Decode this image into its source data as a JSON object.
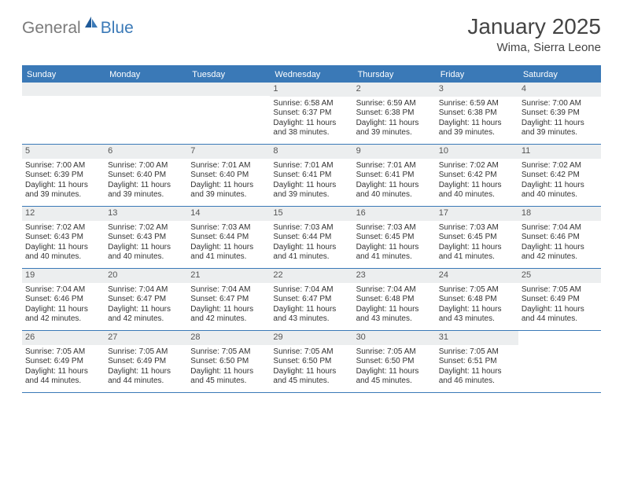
{
  "logo": {
    "word1": "General",
    "word2": "Blue"
  },
  "title": "January 2025",
  "location": "Wima, Sierra Leone",
  "colors": {
    "brand_blue": "#3a79b7",
    "header_gray": "#eceeef",
    "text": "#333333",
    "logo_gray": "#7a7a7a",
    "background": "#ffffff"
  },
  "weekdays": [
    "Sunday",
    "Monday",
    "Tuesday",
    "Wednesday",
    "Thursday",
    "Friday",
    "Saturday"
  ],
  "weeks": [
    [
      null,
      null,
      null,
      {
        "n": "1",
        "sr": "Sunrise: 6:58 AM",
        "ss": "Sunset: 6:37 PM",
        "d1": "Daylight: 11 hours",
        "d2": "and 38 minutes."
      },
      {
        "n": "2",
        "sr": "Sunrise: 6:59 AM",
        "ss": "Sunset: 6:38 PM",
        "d1": "Daylight: 11 hours",
        "d2": "and 39 minutes."
      },
      {
        "n": "3",
        "sr": "Sunrise: 6:59 AM",
        "ss": "Sunset: 6:38 PM",
        "d1": "Daylight: 11 hours",
        "d2": "and 39 minutes."
      },
      {
        "n": "4",
        "sr": "Sunrise: 7:00 AM",
        "ss": "Sunset: 6:39 PM",
        "d1": "Daylight: 11 hours",
        "d2": "and 39 minutes."
      }
    ],
    [
      {
        "n": "5",
        "sr": "Sunrise: 7:00 AM",
        "ss": "Sunset: 6:39 PM",
        "d1": "Daylight: 11 hours",
        "d2": "and 39 minutes."
      },
      {
        "n": "6",
        "sr": "Sunrise: 7:00 AM",
        "ss": "Sunset: 6:40 PM",
        "d1": "Daylight: 11 hours",
        "d2": "and 39 minutes."
      },
      {
        "n": "7",
        "sr": "Sunrise: 7:01 AM",
        "ss": "Sunset: 6:40 PM",
        "d1": "Daylight: 11 hours",
        "d2": "and 39 minutes."
      },
      {
        "n": "8",
        "sr": "Sunrise: 7:01 AM",
        "ss": "Sunset: 6:41 PM",
        "d1": "Daylight: 11 hours",
        "d2": "and 39 minutes."
      },
      {
        "n": "9",
        "sr": "Sunrise: 7:01 AM",
        "ss": "Sunset: 6:41 PM",
        "d1": "Daylight: 11 hours",
        "d2": "and 40 minutes."
      },
      {
        "n": "10",
        "sr": "Sunrise: 7:02 AM",
        "ss": "Sunset: 6:42 PM",
        "d1": "Daylight: 11 hours",
        "d2": "and 40 minutes."
      },
      {
        "n": "11",
        "sr": "Sunrise: 7:02 AM",
        "ss": "Sunset: 6:42 PM",
        "d1": "Daylight: 11 hours",
        "d2": "and 40 minutes."
      }
    ],
    [
      {
        "n": "12",
        "sr": "Sunrise: 7:02 AM",
        "ss": "Sunset: 6:43 PM",
        "d1": "Daylight: 11 hours",
        "d2": "and 40 minutes."
      },
      {
        "n": "13",
        "sr": "Sunrise: 7:02 AM",
        "ss": "Sunset: 6:43 PM",
        "d1": "Daylight: 11 hours",
        "d2": "and 40 minutes."
      },
      {
        "n": "14",
        "sr": "Sunrise: 7:03 AM",
        "ss": "Sunset: 6:44 PM",
        "d1": "Daylight: 11 hours",
        "d2": "and 41 minutes."
      },
      {
        "n": "15",
        "sr": "Sunrise: 7:03 AM",
        "ss": "Sunset: 6:44 PM",
        "d1": "Daylight: 11 hours",
        "d2": "and 41 minutes."
      },
      {
        "n": "16",
        "sr": "Sunrise: 7:03 AM",
        "ss": "Sunset: 6:45 PM",
        "d1": "Daylight: 11 hours",
        "d2": "and 41 minutes."
      },
      {
        "n": "17",
        "sr": "Sunrise: 7:03 AM",
        "ss": "Sunset: 6:45 PM",
        "d1": "Daylight: 11 hours",
        "d2": "and 41 minutes."
      },
      {
        "n": "18",
        "sr": "Sunrise: 7:04 AM",
        "ss": "Sunset: 6:46 PM",
        "d1": "Daylight: 11 hours",
        "d2": "and 42 minutes."
      }
    ],
    [
      {
        "n": "19",
        "sr": "Sunrise: 7:04 AM",
        "ss": "Sunset: 6:46 PM",
        "d1": "Daylight: 11 hours",
        "d2": "and 42 minutes."
      },
      {
        "n": "20",
        "sr": "Sunrise: 7:04 AM",
        "ss": "Sunset: 6:47 PM",
        "d1": "Daylight: 11 hours",
        "d2": "and 42 minutes."
      },
      {
        "n": "21",
        "sr": "Sunrise: 7:04 AM",
        "ss": "Sunset: 6:47 PM",
        "d1": "Daylight: 11 hours",
        "d2": "and 42 minutes."
      },
      {
        "n": "22",
        "sr": "Sunrise: 7:04 AM",
        "ss": "Sunset: 6:47 PM",
        "d1": "Daylight: 11 hours",
        "d2": "and 43 minutes."
      },
      {
        "n": "23",
        "sr": "Sunrise: 7:04 AM",
        "ss": "Sunset: 6:48 PM",
        "d1": "Daylight: 11 hours",
        "d2": "and 43 minutes."
      },
      {
        "n": "24",
        "sr": "Sunrise: 7:05 AM",
        "ss": "Sunset: 6:48 PM",
        "d1": "Daylight: 11 hours",
        "d2": "and 43 minutes."
      },
      {
        "n": "25",
        "sr": "Sunrise: 7:05 AM",
        "ss": "Sunset: 6:49 PM",
        "d1": "Daylight: 11 hours",
        "d2": "and 44 minutes."
      }
    ],
    [
      {
        "n": "26",
        "sr": "Sunrise: 7:05 AM",
        "ss": "Sunset: 6:49 PM",
        "d1": "Daylight: 11 hours",
        "d2": "and 44 minutes."
      },
      {
        "n": "27",
        "sr": "Sunrise: 7:05 AM",
        "ss": "Sunset: 6:49 PM",
        "d1": "Daylight: 11 hours",
        "d2": "and 44 minutes."
      },
      {
        "n": "28",
        "sr": "Sunrise: 7:05 AM",
        "ss": "Sunset: 6:50 PM",
        "d1": "Daylight: 11 hours",
        "d2": "and 45 minutes."
      },
      {
        "n": "29",
        "sr": "Sunrise: 7:05 AM",
        "ss": "Sunset: 6:50 PM",
        "d1": "Daylight: 11 hours",
        "d2": "and 45 minutes."
      },
      {
        "n": "30",
        "sr": "Sunrise: 7:05 AM",
        "ss": "Sunset: 6:50 PM",
        "d1": "Daylight: 11 hours",
        "d2": "and 45 minutes."
      },
      {
        "n": "31",
        "sr": "Sunrise: 7:05 AM",
        "ss": "Sunset: 6:51 PM",
        "d1": "Daylight: 11 hours",
        "d2": "and 46 minutes."
      },
      null
    ]
  ]
}
